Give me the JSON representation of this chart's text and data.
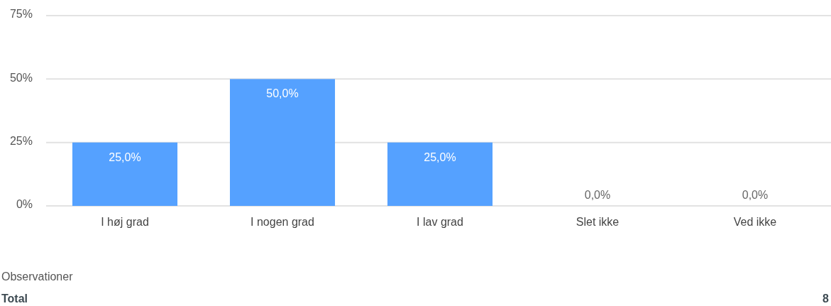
{
  "chart_data": {
    "type": "bar",
    "categories": [
      "I høj grad",
      "I nogen grad",
      "I lav grad",
      "Slet ikke",
      "Ved ikke"
    ],
    "values": [
      25,
      50,
      25,
      0,
      0
    ],
    "color": "#55a1ff",
    "value_labels": [
      "25,0%",
      "50,0%",
      "25,0%",
      "0,0%",
      "0,0%"
    ],
    "ylim": [
      0,
      75
    ],
    "yticks": [
      {
        "value": 0,
        "label": "0%"
      },
      {
        "value": 25,
        "label": "25%"
      },
      {
        "value": 50,
        "label": "50%"
      },
      {
        "value": 75,
        "label": "75%"
      }
    ],
    "grid": "y",
    "annotations": [
      "Observationer",
      "Total",
      "8"
    ]
  }
}
